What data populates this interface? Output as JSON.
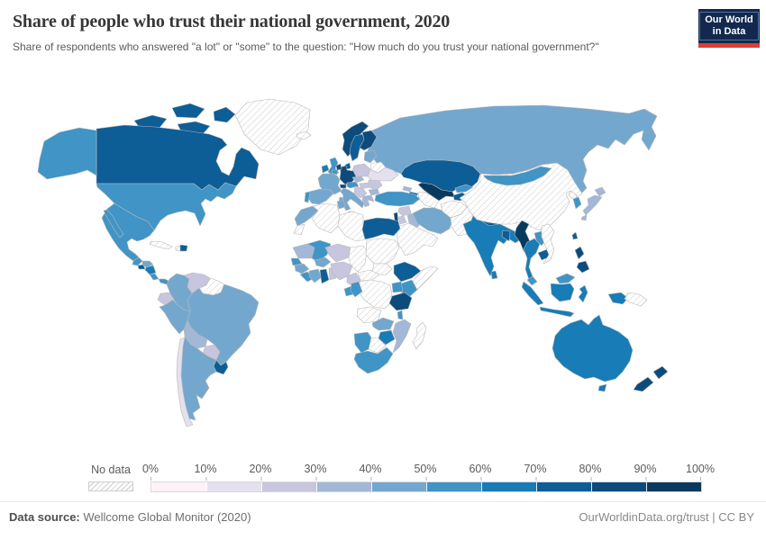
{
  "header": {
    "title": "Share of people who trust their national government, 2020",
    "subtitle": "Share of respondents who answered \"a lot\" or \"some\" to the question: \"How much do you trust your national government?\"",
    "logo_line1": "Our World",
    "logo_line2": "in Data",
    "logo_bg": "#12294d",
    "logo_accent": "#dc3f34"
  },
  "legend": {
    "no_data_label": "No data",
    "ticks": [
      "0%",
      "10%",
      "20%",
      "30%",
      "40%",
      "50%",
      "60%",
      "70%",
      "80%",
      "90%",
      "100%"
    ],
    "bin_colors": [
      "#fdf2f8",
      "#e4e0ee",
      "#c8c6de",
      "#a3b7d7",
      "#74a7ce",
      "#4094c6",
      "#187cb6",
      "#0d5d96",
      "#0d4b7c",
      "#093a5d"
    ],
    "no_data_color": "#ffffff",
    "hatch_line_color": "#cccccc",
    "border_color": "#b8b8b8"
  },
  "footer": {
    "source_label": "Data source:",
    "source_value": " Wellcome Global Monitor (2020)",
    "credit": "OurWorldinData.org/trust | CC BY"
  },
  "chart_data": {
    "type": "choropleth",
    "title": "Share of people who trust their national government, 2020",
    "unit": "% of respondents answering \"a lot\" or \"some\"",
    "legend_bins": [
      "0–10%",
      "10–20%",
      "20–30%",
      "30–40%",
      "40–50%",
      "50–60%",
      "60–70%",
      "70–80%",
      "80–90%",
      "90–100%"
    ],
    "no_data_label": "No data",
    "palette": [
      "#fdf2f8",
      "#e4e0ee",
      "#c8c6de",
      "#a3b7d7",
      "#74a7ce",
      "#4094c6",
      "#187cb6",
      "#0d5d96",
      "#0d4b7c",
      "#093a5d"
    ],
    "countries": {
      "Canada": "70–80%",
      "United States": "50–60%",
      "Mexico": "50–60%",
      "Guatemala": "50–60%",
      "El Salvador": "70–80%",
      "Honduras": "40–50%",
      "Nicaragua": "60–70%",
      "Costa Rica": "50–60%",
      "Panama": "50–60%",
      "Dominican Republic": "70–80%",
      "Cuba": "No data",
      "Haiti": "No data",
      "Greenland": "No data",
      "Colombia": "40–50%",
      "Venezuela": "20–30%",
      "Guyana": "No data",
      "Ecuador": "20–30%",
      "Peru": "40–50%",
      "Brazil": "40–50%",
      "Bolivia": "30–40%",
      "Paraguay": "20–30%",
      "Chile": "10–20%",
      "Argentina": "40–50%",
      "Uruguay": "70–80%",
      "Iceland": "No data",
      "United Kingdom": "50–60%",
      "Ireland": "60–70%",
      "Norway": "80–90%",
      "Sweden": "70–80%",
      "Finland": "80–90%",
      "Denmark": "70–80%",
      "Germany": "80–90%",
      "Netherlands": "80–90%",
      "Belgium": "50–60%",
      "France": "40–50%",
      "Spain": "40–50%",
      "Portugal": "50–60%",
      "Italy": "40–50%",
      "Switzerland": "80–90%",
      "Austria": "50–60%",
      "Czechia": "30–40%",
      "Poland": "20–30%",
      "Hungary": "20–30%",
      "Romania": "20–30%",
      "Bulgaria": "30–40%",
      "Serbia": "20–30%",
      "Greece": "30–40%",
      "Ukraine": "10–20%",
      "Belarus": "No data",
      "Estonia": "40–50%",
      "Latvia": "40–50%",
      "Lithuania": "40–50%",
      "Russia": "40–50%",
      "Turkey": "50–60%",
      "Georgia": "30–40%",
      "Azerbaijan": "60–70%",
      "Kazakhstan": "70–80%",
      "Uzbekistan": "90–100%",
      "Turkmenistan": "No data",
      "Kyrgyzstan": "50–60%",
      "Tajikistan": "70–80%",
      "Afghanistan": "No data",
      "Pakistan": "No data",
      "Iran": "40–50%",
      "Iraq": "30–40%",
      "Syria": "20–30%",
      "Israel": "80–90%",
      "Jordan": "20–30%",
      "Saudi Arabia": "No data",
      "Yemen": "No data",
      "India": "60–70%",
      "Nepal": "70–80%",
      "Bangladesh": "70–80%",
      "Sri Lanka": "60–70%",
      "China": "No data",
      "Mongolia": "50–60%",
      "North Korea": "No data",
      "South Korea": "50–60%",
      "Japan": "30–40%",
      "Taiwan": "70–80%",
      "Myanmar": "90–100%",
      "Thailand": "60–70%",
      "Laos": "50–60%",
      "Cambodia": "70–80%",
      "Vietnam": "No data",
      "Malaysia": "50–60%",
      "Indonesia": "60–70%",
      "Philippines": "80–90%",
      "Papua New Guinea": "No data",
      "Australia": "60–70%",
      "New Zealand": "80–90%",
      "Morocco": "40–50%",
      "Western Sahara": "No data",
      "Algeria": "No data",
      "Tunisia": "40–50%",
      "Libya": "No data",
      "Egypt": "70–80%",
      "Mauritania": "30–40%",
      "Mali": "50–60%",
      "Senegal": "50–60%",
      "Guinea": "40–50%",
      "Sierra Leone": "50–60%",
      "Liberia": "50–60%",
      "Ivory Coast": "40–50%",
      "Ghana": "70–80%",
      "Togo": "20–30%",
      "Benin": "20–30%",
      "Burkina Faso": "40–50%",
      "Niger": "20–30%",
      "Nigeria": "20–30%",
      "Chad": "No data",
      "Sudan": "No data",
      "South Sudan": "No data",
      "Ethiopia": "70–80%",
      "Somalia": "No data",
      "Kenya": "50–60%",
      "Uganda": "50–60%",
      "Tanzania": "80–90%",
      "Democratic Republic of Congo": "No data",
      "Cameroon": "20–30%",
      "Central African Republic": "No data",
      "Gabon": "50–60%",
      "Congo": "50–60%",
      "Angola": "No data",
      "Zambia": "40–50%",
      "Malawi": "50–60%",
      "Mozambique": "30–40%",
      "Zimbabwe": "60–70%",
      "Botswana": "No data",
      "Namibia": "50–60%",
      "South Africa": "50–60%",
      "Madagascar": "No data"
    }
  },
  "map": {
    "countries": [
      {
        "id": "greenland",
        "bin": null
      },
      {
        "id": "canada",
        "bin": 7
      },
      {
        "id": "usa",
        "bin": 5
      },
      {
        "id": "mexico",
        "bin": 5
      },
      {
        "id": "guatemala",
        "bin": 5
      },
      {
        "id": "el-salvador",
        "bin": 7
      },
      {
        "id": "honduras",
        "bin": 4
      },
      {
        "id": "nicaragua",
        "bin": 6
      },
      {
        "id": "costa-rica",
        "bin": 5
      },
      {
        "id": "panama",
        "bin": 5
      },
      {
        "id": "cuba",
        "bin": null
      },
      {
        "id": "haiti",
        "bin": null
      },
      {
        "id": "dominican-republic",
        "bin": 7
      },
      {
        "id": "colombia",
        "bin": 4
      },
      {
        "id": "venezuela",
        "bin": 2
      },
      {
        "id": "guyana",
        "bin": null
      },
      {
        "id": "ecuador",
        "bin": 2
      },
      {
        "id": "peru",
        "bin": 4
      },
      {
        "id": "brazil",
        "bin": 4
      },
      {
        "id": "bolivia",
        "bin": 3
      },
      {
        "id": "paraguay",
        "bin": 2
      },
      {
        "id": "chile",
        "bin": 1
      },
      {
        "id": "argentina",
        "bin": 4
      },
      {
        "id": "uruguay",
        "bin": 7
      },
      {
        "id": "iceland",
        "bin": null
      },
      {
        "id": "uk",
        "bin": 5
      },
      {
        "id": "ireland",
        "bin": 6
      },
      {
        "id": "norway",
        "bin": 8
      },
      {
        "id": "sweden",
        "bin": 7
      },
      {
        "id": "finland",
        "bin": 8
      },
      {
        "id": "denmark",
        "bin": 7
      },
      {
        "id": "germany",
        "bin": 8
      },
      {
        "id": "netherlands",
        "bin": 8
      },
      {
        "id": "belgium",
        "bin": 5
      },
      {
        "id": "france",
        "bin": 4
      },
      {
        "id": "switzerland",
        "bin": 8
      },
      {
        "id": "austria",
        "bin": 5
      },
      {
        "id": "czechia",
        "bin": 3
      },
      {
        "id": "poland",
        "bin": 2
      },
      {
        "id": "hungary",
        "bin": 2
      },
      {
        "id": "romania",
        "bin": 2
      },
      {
        "id": "bulgaria",
        "bin": 3
      },
      {
        "id": "balkans",
        "bin": 2
      },
      {
        "id": "greece",
        "bin": 3
      },
      {
        "id": "italy",
        "bin": 4
      },
      {
        "id": "spain",
        "bin": 4
      },
      {
        "id": "portugal",
        "bin": 5
      },
      {
        "id": "ukraine",
        "bin": 1
      },
      {
        "id": "belarus",
        "bin": null
      },
      {
        "id": "baltics",
        "bin": 4
      },
      {
        "id": "russia",
        "bin": 4
      },
      {
        "id": "turkey",
        "bin": 5
      },
      {
        "id": "georgia",
        "bin": 3
      },
      {
        "id": "azerbaijan",
        "bin": 6
      },
      {
        "id": "kazakhstan",
        "bin": 7
      },
      {
        "id": "uzbekistan",
        "bin": 9
      },
      {
        "id": "turkmenistan",
        "bin": null
      },
      {
        "id": "kyrgyzstan",
        "bin": 5
      },
      {
        "id": "tajikistan",
        "bin": 7
      },
      {
        "id": "afghanistan",
        "bin": null
      },
      {
        "id": "pakistan",
        "bin": null
      },
      {
        "id": "iran",
        "bin": 4
      },
      {
        "id": "iraq",
        "bin": 3
      },
      {
        "id": "syria",
        "bin": 2
      },
      {
        "id": "israel",
        "bin": 8
      },
      {
        "id": "jordan",
        "bin": 2
      },
      {
        "id": "arabia",
        "bin": null
      },
      {
        "id": "india",
        "bin": 6
      },
      {
        "id": "nepal",
        "bin": 7
      },
      {
        "id": "bangladesh",
        "bin": 7
      },
      {
        "id": "sri-lanka",
        "bin": 6
      },
      {
        "id": "china",
        "bin": null
      },
      {
        "id": "mongolia",
        "bin": 5
      },
      {
        "id": "north-korea",
        "bin": null
      },
      {
        "id": "south-korea",
        "bin": 5
      },
      {
        "id": "japan",
        "bin": 3
      },
      {
        "id": "taiwan",
        "bin": 7
      },
      {
        "id": "myanmar",
        "bin": 9
      },
      {
        "id": "thailand",
        "bin": 6
      },
      {
        "id": "laos",
        "bin": 5
      },
      {
        "id": "cambodia",
        "bin": 7
      },
      {
        "id": "vietnam",
        "bin": null
      },
      {
        "id": "malaysia",
        "bin": 5
      },
      {
        "id": "indonesia",
        "bin": 6
      },
      {
        "id": "philippines",
        "bin": 8
      },
      {
        "id": "png",
        "bin": null
      },
      {
        "id": "australia",
        "bin": 6
      },
      {
        "id": "new-zealand",
        "bin": 8
      },
      {
        "id": "morocco",
        "bin": 4
      },
      {
        "id": "western-sahara",
        "bin": null
      },
      {
        "id": "algeria",
        "bin": null
      },
      {
        "id": "tunisia",
        "bin": 4
      },
      {
        "id": "libya",
        "bin": null
      },
      {
        "id": "egypt",
        "bin": 7
      },
      {
        "id": "mauritania",
        "bin": 3
      },
      {
        "id": "mali",
        "bin": 5
      },
      {
        "id": "senegal",
        "bin": 5
      },
      {
        "id": "guinea",
        "bin": 4
      },
      {
        "id": "sierra-leone-liberia",
        "bin": 5
      },
      {
        "id": "ivory-coast",
        "bin": 4
      },
      {
        "id": "ghana",
        "bin": 7
      },
      {
        "id": "togo-benin",
        "bin": 2
      },
      {
        "id": "burkina-faso",
        "bin": 4
      },
      {
        "id": "niger",
        "bin": 2
      },
      {
        "id": "nigeria",
        "bin": 2
      },
      {
        "id": "chad",
        "bin": null
      },
      {
        "id": "sudan",
        "bin": null
      },
      {
        "id": "south-sudan",
        "bin": null
      },
      {
        "id": "ethiopia",
        "bin": 7
      },
      {
        "id": "somalia",
        "bin": null
      },
      {
        "id": "kenya",
        "bin": 5
      },
      {
        "id": "uganda",
        "bin": 5
      },
      {
        "id": "tanzania",
        "bin": 8
      },
      {
        "id": "drc",
        "bin": null
      },
      {
        "id": "cameroon",
        "bin": 2
      },
      {
        "id": "car",
        "bin": null
      },
      {
        "id": "gabon",
        "bin": 5
      },
      {
        "id": "congo",
        "bin": 5
      },
      {
        "id": "angola",
        "bin": null
      },
      {
        "id": "zambia",
        "bin": 4
      },
      {
        "id": "malawi",
        "bin": 5
      },
      {
        "id": "mozambique",
        "bin": 3
      },
      {
        "id": "zimbabwe",
        "bin": 6
      },
      {
        "id": "botswana",
        "bin": null
      },
      {
        "id": "namibia",
        "bin": 5
      },
      {
        "id": "south-africa",
        "bin": 5
      },
      {
        "id": "madagascar",
        "bin": null
      }
    ]
  }
}
